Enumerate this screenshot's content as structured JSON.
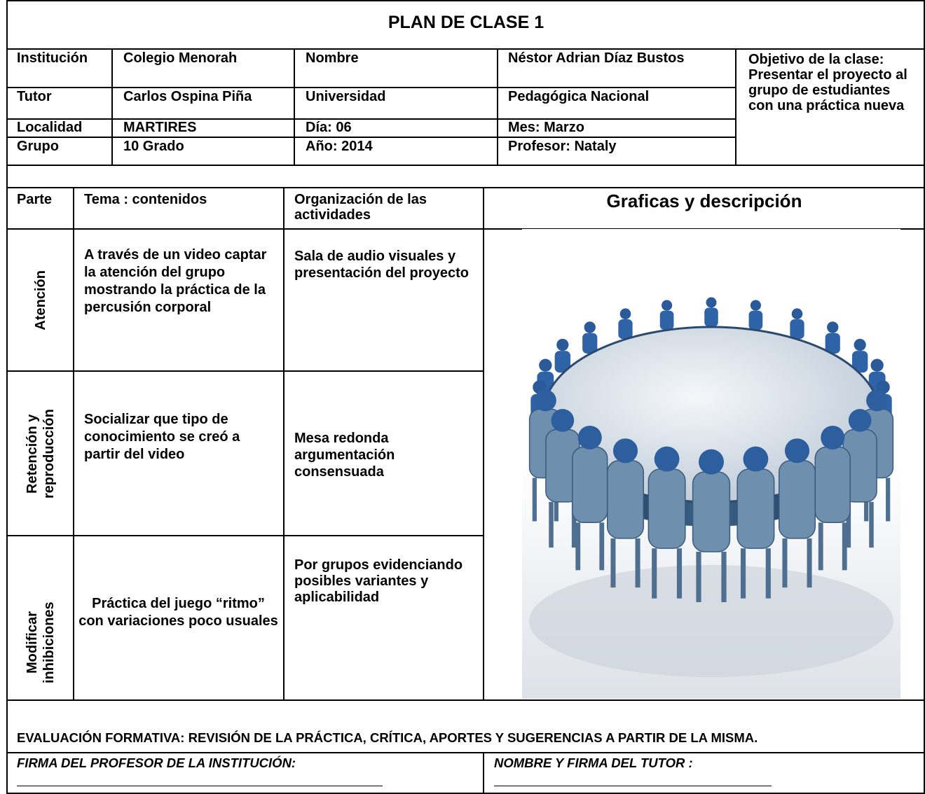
{
  "title": "PLAN DE CLASE 1",
  "info": {
    "rows": [
      [
        "Institución",
        "Colegio Menorah",
        "Nombre",
        "Néstor Adrian Díaz Bustos"
      ],
      [
        "Tutor",
        "Carlos Ospina Piña",
        "Universidad",
        "Pedagógica Nacional"
      ],
      [
        "Localidad",
        "MARTIRES",
        "Día:  06",
        "Mes: Marzo"
      ],
      [
        "Grupo",
        "10 Grado",
        "Año: 2014",
        "Profesor: Nataly"
      ]
    ],
    "objective": "Objetivo de la clase: Presentar el proyecto al grupo de estudiantes con una práctica nueva"
  },
  "plan": {
    "headers": [
      "Parte",
      "Tema : contenidos",
      "Organización de las actividades",
      "Graficas y descripción"
    ],
    "rows": [
      {
        "part": "Atención",
        "topic": "A través de un video captar la atención del grupo mostrando la práctica de la percusión corporal",
        "organization": "Sala de audio visuales y presentación del proyecto"
      },
      {
        "part": "Retención y reproducción",
        "topic": "Socializar que tipo de conocimiento se creó a partir del video",
        "organization": "Mesa redonda argumentación consensuada"
      },
      {
        "part": "Modificar inhibiciones",
        "topic": "Práctica  del juego “ritmo” con variaciones poco usuales",
        "organization": "Por grupos evidenciando posibles variantes y aplicabilidad"
      }
    ]
  },
  "evaluation": "EVALUACIÓN FORMATIVA: REVISIÓN DE LA PRÁCTICA, CRÍTICA, APORTES  Y SUGERENCIAS A PARTIR DE LA MISMA.",
  "signatures": [
    "FIRMA DEL PROFESOR DE LA INSTITUCIÓN:",
    "NOMBRE Y FIRMA DEL TUTOR :"
  ]
}
